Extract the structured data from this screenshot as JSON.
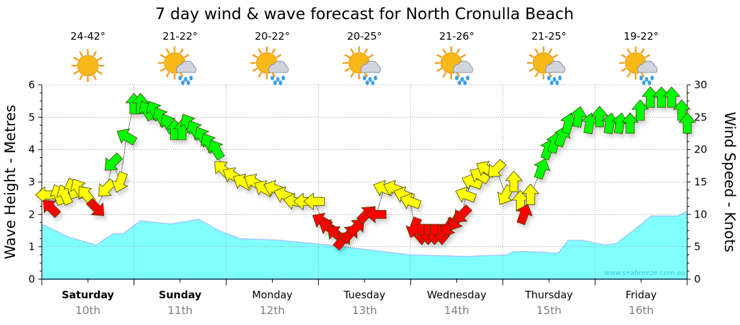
{
  "chart_data": {
    "type": "area",
    "title": "7 day wind & wave forecast for North Cronulla Beach",
    "ylabel_left": "Wave Height - Metres",
    "ylabel_right": "Wind Speed - Knots",
    "ylim_left": [
      0,
      6
    ],
    "ylim_right": [
      0,
      30
    ],
    "yticks_left": [
      "0",
      "1",
      "2",
      "3",
      "4",
      "5",
      "6"
    ],
    "yticks_right": [
      "0",
      "5",
      "10",
      "15",
      "20",
      "25",
      "30"
    ],
    "grid": true,
    "watermark": "www.seabreeze.com.au",
    "days": [
      {
        "name": "Saturday",
        "date": "10th",
        "bold": true,
        "temp": "24-42°",
        "icon": "sunny-icon"
      },
      {
        "name": "Sunday",
        "date": "11th",
        "bold": true,
        "temp": "21-22°",
        "icon": "sun-cloud-rain-icon"
      },
      {
        "name": "Monday",
        "date": "12th",
        "bold": false,
        "temp": "20-22°",
        "icon": "sun-cloud-rain-icon"
      },
      {
        "name": "Tuesday",
        "date": "13th",
        "bold": false,
        "temp": "20-25°",
        "icon": "sun-cloud-rain-icon"
      },
      {
        "name": "Wednesday",
        "date": "14th",
        "bold": false,
        "temp": "21-26°",
        "icon": "sun-cloud-rain-icon"
      },
      {
        "name": "Thursday",
        "date": "15th",
        "bold": false,
        "temp": "21-25°",
        "icon": "sun-cloud-rain-icon"
      },
      {
        "name": "Friday",
        "date": "16th",
        "bold": false,
        "temp": "19-22°",
        "icon": "sun-cloud-rain-icon"
      }
    ],
    "colors": {
      "wave": "#80ffff",
      "wave_edge": "#a0c8ff",
      "Y": "#ffff00",
      "R": "#ff0000",
      "G": "#00ff00"
    },
    "wave_series": {
      "name": "Wave height (m)",
      "points": [
        [
          0,
          1.7
        ],
        [
          0.29,
          1.3
        ],
        [
          0.59,
          1.05
        ],
        [
          0.77,
          1.4
        ],
        [
          0.88,
          1.4
        ],
        [
          1.07,
          1.8
        ],
        [
          1.4,
          1.7
        ],
        [
          1.7,
          1.85
        ],
        [
          1.92,
          1.5
        ],
        [
          2.15,
          1.25
        ],
        [
          2.59,
          1.2
        ],
        [
          3.11,
          1.05
        ],
        [
          3.56,
          0.9
        ],
        [
          4.0,
          0.75
        ],
        [
          4.6,
          0.7
        ],
        [
          5.04,
          0.75
        ],
        [
          5.12,
          0.85
        ],
        [
          5.3,
          0.85
        ],
        [
          5.6,
          0.8
        ],
        [
          5.71,
          1.2
        ],
        [
          5.86,
          1.2
        ],
        [
          6.12,
          1.05
        ],
        [
          6.23,
          1.1
        ],
        [
          6.46,
          1.6
        ],
        [
          6.61,
          1.95
        ],
        [
          6.9,
          1.95
        ],
        [
          7.0,
          2.1
        ]
      ]
    },
    "wind_series": {
      "name": "Wind (knots, direction arrow points to in degrees)",
      "points": [
        [
          0.05,
          13,
          270,
          "Y"
        ],
        [
          0.1,
          11,
          315,
          "R"
        ],
        [
          0.18,
          13,
          340,
          "Y"
        ],
        [
          0.25,
          13,
          335,
          "Y"
        ],
        [
          0.33,
          14,
          345,
          "Y"
        ],
        [
          0.4,
          14,
          330,
          "Y"
        ],
        [
          0.48,
          13,
          320,
          "Y"
        ],
        [
          0.59,
          11,
          135,
          "R"
        ],
        [
          0.7,
          14,
          225,
          "Y"
        ],
        [
          0.77,
          18,
          225,
          "G"
        ],
        [
          0.85,
          15,
          200,
          "Y"
        ],
        [
          0.92,
          22,
          300,
          "G"
        ],
        [
          1.0,
          27,
          0,
          "G"
        ],
        [
          1.07,
          27,
          0,
          "G"
        ],
        [
          1.14,
          26,
          330,
          "G"
        ],
        [
          1.22,
          26,
          330,
          "G"
        ],
        [
          1.29,
          25,
          330,
          "G"
        ],
        [
          1.37,
          24,
          330,
          "G"
        ],
        [
          1.44,
          23,
          0,
          "G"
        ],
        [
          1.52,
          23,
          0,
          "G"
        ],
        [
          1.59,
          24,
          330,
          "G"
        ],
        [
          1.66,
          23,
          330,
          "G"
        ],
        [
          1.74,
          22,
          330,
          "G"
        ],
        [
          1.81,
          21,
          330,
          "G"
        ],
        [
          1.89,
          20,
          330,
          "G"
        ],
        [
          1.96,
          17,
          315,
          "Y"
        ],
        [
          2.07,
          16,
          300,
          "Y"
        ],
        [
          2.18,
          15,
          300,
          "Y"
        ],
        [
          2.3,
          15,
          300,
          "Y"
        ],
        [
          2.41,
          14,
          300,
          "Y"
        ],
        [
          2.52,
          14,
          290,
          "Y"
        ],
        [
          2.63,
          13,
          290,
          "Y"
        ],
        [
          2.74,
          12,
          280,
          "Y"
        ],
        [
          2.85,
          12,
          270,
          "Y"
        ],
        [
          2.96,
          12,
          270,
          "Y"
        ],
        [
          3.04,
          9,
          300,
          "R"
        ],
        [
          3.11,
          8,
          300,
          "R"
        ],
        [
          3.19,
          7,
          310,
          "R"
        ],
        [
          3.26,
          6,
          40,
          "R"
        ],
        [
          3.34,
          7,
          40,
          "R"
        ],
        [
          3.41,
          8,
          45,
          "R"
        ],
        [
          3.52,
          10,
          45,
          "R"
        ],
        [
          3.63,
          10,
          270,
          "R"
        ],
        [
          3.71,
          14,
          290,
          "Y"
        ],
        [
          3.82,
          14,
          290,
          "Y"
        ],
        [
          3.93,
          13,
          290,
          "Y"
        ],
        [
          4.0,
          12,
          290,
          "Y"
        ],
        [
          4.04,
          8,
          200,
          "R"
        ],
        [
          4.12,
          7,
          180,
          "R"
        ],
        [
          4.19,
          7,
          180,
          "R"
        ],
        [
          4.26,
          7,
          180,
          "R"
        ],
        [
          4.34,
          7,
          180,
          "R"
        ],
        [
          4.41,
          8,
          210,
          "R"
        ],
        [
          4.49,
          9,
          210,
          "R"
        ],
        [
          4.56,
          10,
          225,
          "R"
        ],
        [
          4.6,
          13,
          290,
          "Y"
        ],
        [
          4.67,
          15,
          290,
          "Y"
        ],
        [
          4.75,
          16,
          300,
          "Y"
        ],
        [
          4.82,
          17,
          300,
          "Y"
        ],
        [
          4.93,
          17,
          225,
          "Y"
        ],
        [
          5.03,
          13,
          210,
          "Y"
        ],
        [
          5.12,
          15,
          0,
          "Y"
        ],
        [
          5.19,
          12,
          0,
          "Y"
        ],
        [
          5.23,
          10,
          20,
          "R"
        ],
        [
          5.3,
          13,
          0,
          "Y"
        ],
        [
          5.42,
          17,
          20,
          "G"
        ],
        [
          5.49,
          20,
          20,
          "G"
        ],
        [
          5.56,
          21,
          15,
          "G"
        ],
        [
          5.64,
          22,
          20,
          "G"
        ],
        [
          5.71,
          24,
          15,
          "G"
        ],
        [
          5.82,
          25,
          10,
          "G"
        ],
        [
          5.94,
          24,
          10,
          "G"
        ],
        [
          6.05,
          25,
          0,
          "G"
        ],
        [
          6.16,
          24,
          10,
          "G"
        ],
        [
          6.27,
          24,
          10,
          "G"
        ],
        [
          6.38,
          24,
          0,
          "G"
        ],
        [
          6.49,
          26,
          0,
          "G"
        ],
        [
          6.6,
          28,
          0,
          "G"
        ],
        [
          6.72,
          28,
          0,
          "G"
        ],
        [
          6.83,
          28,
          0,
          "G"
        ],
        [
          6.94,
          26,
          0,
          "G"
        ],
        [
          7.0,
          24,
          0,
          "G"
        ]
      ]
    }
  }
}
